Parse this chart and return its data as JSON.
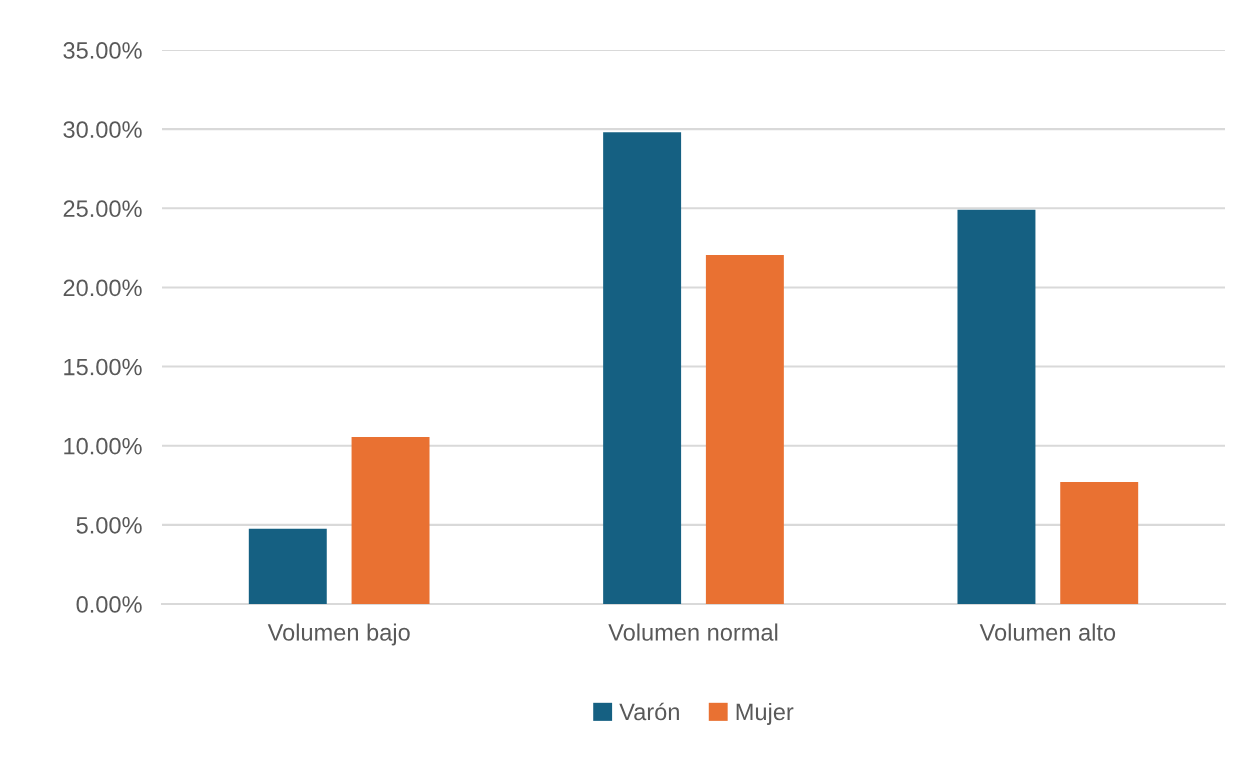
{
  "chart_data": {
    "type": "bar",
    "categories": [
      "Volumen bajo",
      "Volumen normal",
      "Volumen alto"
    ],
    "series": [
      {
        "name": "Varón",
        "color": "#156082",
        "values": [
          4.76,
          29.8,
          24.9
        ]
      },
      {
        "name": "Mujer",
        "color": "#e97132",
        "values": [
          10.55,
          22.05,
          7.7
        ]
      }
    ],
    "ylim": [
      0,
      35
    ],
    "yticks": [
      {
        "value": 0,
        "label": "0.00%"
      },
      {
        "value": 5,
        "label": "5.00%"
      },
      {
        "value": 10,
        "label": "10.00%"
      },
      {
        "value": 15,
        "label": "15.00%"
      },
      {
        "value": 20,
        "label": "20.00%"
      },
      {
        "value": 25,
        "label": "25.00%"
      },
      {
        "value": 30,
        "label": "30.00%"
      },
      {
        "value": 35,
        "label": "35.00%"
      }
    ],
    "grid": "y",
    "legend": "bottom"
  }
}
